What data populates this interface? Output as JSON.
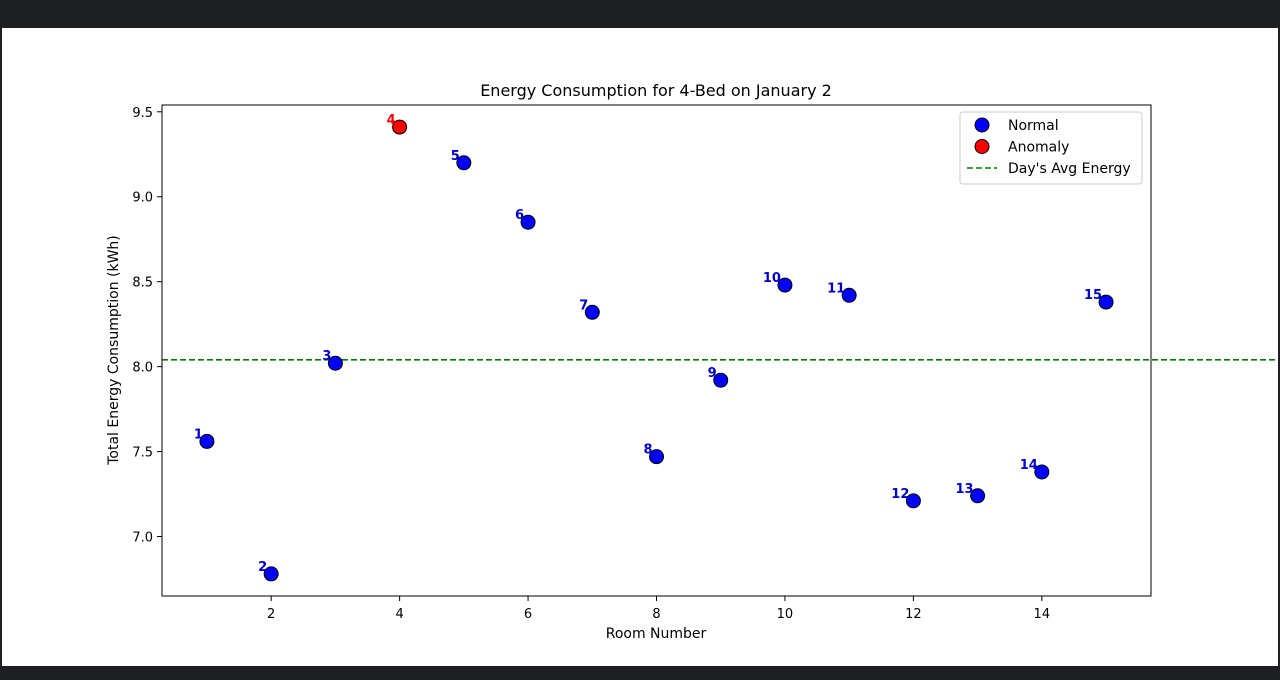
{
  "chart_data": {
    "type": "scatter",
    "title": "Energy Consumption for 4-Bed on January 2",
    "xlabel": "Room Number",
    "ylabel": "Total Energy Consumption (kWh)",
    "xlim": [
      0.3,
      15.7
    ],
    "ylim": [
      6.65,
      9.54
    ],
    "xticks": [
      2,
      4,
      6,
      8,
      10,
      12,
      14
    ],
    "yticks": [
      7.0,
      7.5,
      8.0,
      8.5,
      9.0,
      9.5
    ],
    "grid": false,
    "legend_position": "top-right",
    "avg_energy": 8.04,
    "points": [
      {
        "x": 1,
        "y": 7.56,
        "label": "1",
        "anomaly": false
      },
      {
        "x": 2,
        "y": 6.78,
        "label": "2",
        "anomaly": false
      },
      {
        "x": 3,
        "y": 8.02,
        "label": "3",
        "anomaly": false
      },
      {
        "x": 4,
        "y": 9.41,
        "label": "4",
        "anomaly": true
      },
      {
        "x": 5,
        "y": 9.2,
        "label": "5",
        "anomaly": false
      },
      {
        "x": 6,
        "y": 8.85,
        "label": "6",
        "anomaly": false
      },
      {
        "x": 7,
        "y": 8.32,
        "label": "7",
        "anomaly": false
      },
      {
        "x": 8,
        "y": 7.47,
        "label": "8",
        "anomaly": false
      },
      {
        "x": 9,
        "y": 7.92,
        "label": "9",
        "anomaly": false
      },
      {
        "x": 10,
        "y": 8.48,
        "label": "10",
        "anomaly": false
      },
      {
        "x": 11,
        "y": 8.42,
        "label": "11",
        "anomaly": false
      },
      {
        "x": 12,
        "y": 7.21,
        "label": "12",
        "anomaly": false
      },
      {
        "x": 13,
        "y": 7.24,
        "label": "13",
        "anomaly": false
      },
      {
        "x": 14,
        "y": 7.38,
        "label": "14",
        "anomaly": false
      },
      {
        "x": 15,
        "y": 8.38,
        "label": "15",
        "anomaly": false
      }
    ],
    "legend": [
      {
        "name": "Normal",
        "marker": "circle",
        "color": "#0000ff"
      },
      {
        "name": "Anomaly",
        "marker": "circle",
        "color": "#ff0000"
      },
      {
        "name": "Day's Avg Energy",
        "marker": "dashed-line",
        "color": "#008000"
      }
    ],
    "colors": {
      "normal": "#0000ff",
      "anomaly": "#ff0000",
      "avg_line": "#008000",
      "normal_label": "#0000cd",
      "anomaly_label": "#ff0000"
    }
  }
}
